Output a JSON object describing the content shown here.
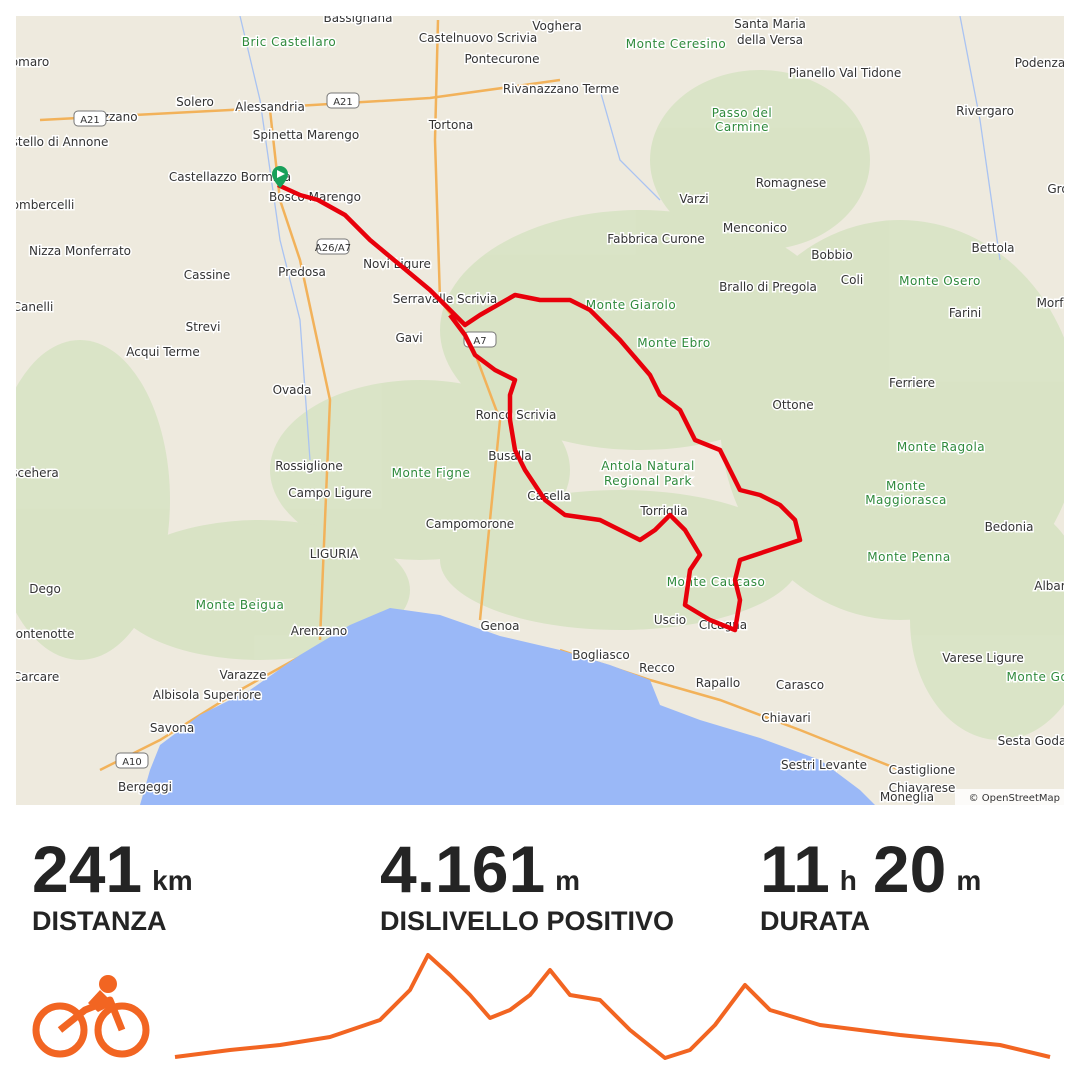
{
  "map": {
    "labels": [
      "Bassignana",
      "Voghera",
      "Santa Maria",
      "della Versa",
      "Bric Castellaro",
      "Castelnuovo Scrivia",
      "Monte Ceresino",
      "Podenza",
      "Pontecurone",
      "omaro",
      "Pianello Val Tidone",
      "Solero",
      "Alessandria",
      "Rivanazzano Terme",
      "Passo del",
      "Carmine",
      "Rivergaro",
      "Felizzano",
      "Spinetta Marengo",
      "Tortona",
      "stello di Annone",
      "Castellazzo Bormida",
      "Bosco Marengo",
      "Romagnese",
      "Gro",
      "Varzi",
      "ombercelli",
      "Fabbrica Curone",
      "Menconico",
      "Novi Ligure",
      "Bobbio",
      "Bettola",
      "Nizza Monferrato",
      "Cassine",
      "Predosa",
      "Coli",
      "Monte Osero",
      "Brallo di Pregola",
      "Serravalle Scrivia",
      "Canelli",
      "Monte Giarolo",
      "Morf",
      "Strevi",
      "Gavi",
      "Farini",
      "Monte Ebro",
      "Acqui Terme",
      "Ovada",
      "Ferriere",
      "Ottone",
      "Ronco Scrivia",
      "Monte Ragola",
      "Rossiglione",
      "Busalla",
      "Antola Natural",
      "Regional Park",
      "scehera",
      "Monte Figne",
      "Campo Ligure",
      "Monte",
      "Maggiorasca",
      "Casella",
      "Torriglia",
      "Campomorone",
      "Bedonia",
      "LIGURIA",
      "Monte Penna",
      "Monte Caucaso",
      "Dego",
      "Albar",
      "Monte Beigua",
      "Genoa",
      "Uscio",
      "Cicagna",
      "ontenotte",
      "Arenzano",
      "Bogliasco",
      "Varese Ligure",
      "Recco",
      "Monte Got",
      "Carcare",
      "Varazze",
      "Rapallo",
      "Carasco",
      "Albisola Superiore",
      "Savona",
      "Chiavari",
      "Sesta Goda",
      "Castiglione",
      "Chiavarese",
      "Sestri Levante",
      "Bergeggi",
      "Moneglia"
    ],
    "road_labels": [
      "A21",
      "A21",
      "A26/A7",
      "A7",
      "A10"
    ],
    "attribution": "© OpenStreetMap"
  },
  "stats": [
    {
      "parts": [
        {
          "value": 241,
          "unit": "km"
        }
      ],
      "label": "DISTANZA"
    },
    {
      "parts": [
        {
          "value": "4.161",
          "unit": "m"
        }
      ],
      "label": "DISLIVELLO POSITIVO"
    },
    {
      "parts": [
        {
          "value": 11,
          "unit": "h"
        },
        {
          "value": 20,
          "unit": "m"
        }
      ],
      "label": "DURATA"
    }
  ]
}
